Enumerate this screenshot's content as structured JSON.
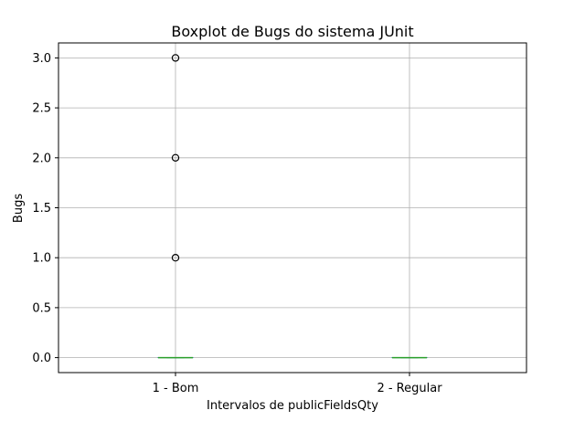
{
  "chart_data": {
    "type": "boxplot",
    "title": "Boxplot de Bugs do sistema JUnit",
    "xlabel": "Intervalos de publicFieldsQty",
    "ylabel": "Bugs",
    "ylim": [
      -0.15,
      3.15
    ],
    "yticks": [
      0.0,
      0.5,
      1.0,
      1.5,
      2.0,
      2.5,
      3.0
    ],
    "ytick_labels": [
      "0.0",
      "0.5",
      "1.0",
      "1.5",
      "2.0",
      "2.5",
      "3.0"
    ],
    "grid": true,
    "categories": [
      "1 - Bom",
      "2 - Regular"
    ],
    "boxes": [
      {
        "category": "1 - Bom",
        "min": 0,
        "q1": 0,
        "median": 0,
        "q3": 0,
        "max": 0,
        "outliers": [
          1,
          2,
          3
        ]
      },
      {
        "category": "2 - Regular",
        "min": 0,
        "q1": 0,
        "median": 0,
        "q3": 0,
        "max": 0,
        "outliers": []
      }
    ],
    "colors": {
      "box": "#1f77b4",
      "median": "#2ca02c",
      "outlier": "#000000",
      "grid": "#b0b0b0"
    }
  }
}
